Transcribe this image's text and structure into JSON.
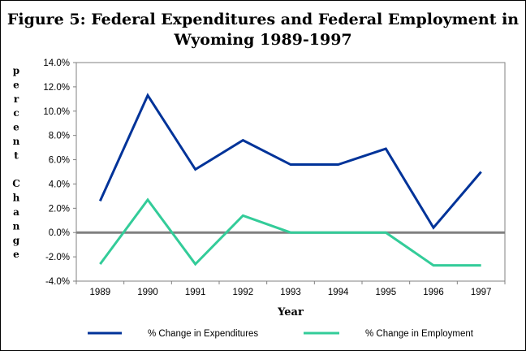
{
  "chart_data": {
    "type": "line",
    "title": "Figure 5:  Federal Expenditures and Federal Employment in Wyoming 1989-1997",
    "xlabel": "Year",
    "ylabel": "percent Change",
    "ylabel_lines": [
      "p",
      "e",
      "r",
      "c",
      "e",
      "n",
      "t",
      "",
      "C",
      "h",
      "a",
      "n",
      "g",
      "e"
    ],
    "categories": [
      "1989",
      "1990",
      "1991",
      "1992",
      "1993",
      "1994",
      "1995",
      "1996",
      "1997"
    ],
    "ylim": [
      -4,
      14
    ],
    "yticks": [
      -4,
      -2,
      0,
      2,
      4,
      6,
      8,
      10,
      12,
      14
    ],
    "ytick_labels": [
      "-4.0%",
      "-2.0%",
      "0.0%",
      "2.0%",
      "4.0%",
      "6.0%",
      "8.0%",
      "10.0%",
      "12.0%",
      "14.0%"
    ],
    "grid": false,
    "legend_position": "bottom",
    "zero_line_color": "#808080",
    "series": [
      {
        "name": "% Change in Expenditures",
        "color": "#003399",
        "values": [
          2.6,
          11.3,
          5.2,
          7.6,
          5.6,
          5.6,
          6.9,
          0.4,
          5.0
        ]
      },
      {
        "name": "% Change in Employment",
        "color": "#33cc99",
        "values": [
          -2.6,
          2.7,
          -2.6,
          1.4,
          0.0,
          0.0,
          0.0,
          -2.7,
          -2.7
        ]
      }
    ]
  }
}
